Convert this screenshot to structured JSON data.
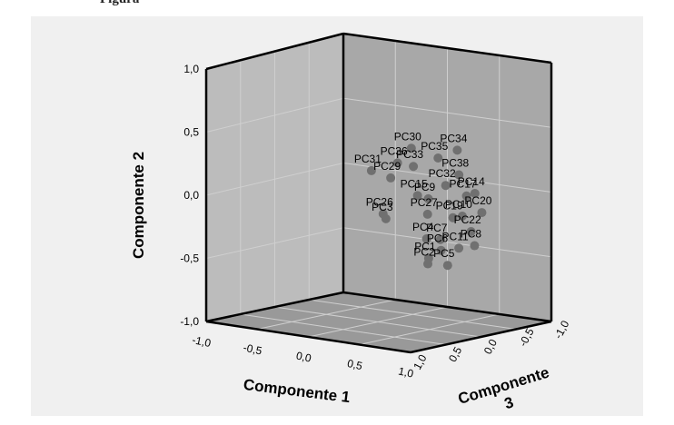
{
  "caption": "Figura",
  "colors": {
    "background": "#ffffff",
    "plot_frame": "#f0f0f0",
    "back_wall": "#a8a8a8",
    "left_wall": "#bcbcbc",
    "floor": "#999999",
    "point": "#707070",
    "grid": "#cfcfcf"
  },
  "chart_data": {
    "type": "scatter",
    "dimensions": 3,
    "xlabel": "Componente 1",
    "ylabel": "Componente 2",
    "zlabel": "Componente 3",
    "xlim": [
      -1.0,
      1.0
    ],
    "ylim": [
      -1.0,
      1.0
    ],
    "zlim": [
      -1.0,
      1.0
    ],
    "x_ticks": [
      "-1,0",
      "-0,5",
      "0,0",
      "0,5",
      "1,0"
    ],
    "y_ticks": [
      "1,0",
      "0,5",
      "0,0",
      "-0,5",
      "-1,0"
    ],
    "z_ticks": [
      "1,0",
      "0,5",
      "0,0",
      "-0,5",
      "-1,0"
    ],
    "grid": true,
    "points": [
      {
        "label": "PC1",
        "x": 0.54,
        "y": -0.43,
        "z": 0.07
      },
      {
        "label": "PC2",
        "x": 0.58,
        "y": -0.46,
        "z": 0.14
      },
      {
        "label": "PC3",
        "x": 0.22,
        "y": -0.14,
        "z": 0.21
      },
      {
        "label": "PC4",
        "x": 0.52,
        "y": -0.28,
        "z": 0.07
      },
      {
        "label": "PC5",
        "x": 0.67,
        "y": -0.48,
        "z": -0.01
      },
      {
        "label": "PC6",
        "x": 0.64,
        "y": -0.36,
        "z": 0.04
      },
      {
        "label": "PC7",
        "x": 0.62,
        "y": -0.28,
        "z": 0.02
      },
      {
        "label": "PC8",
        "x": 0.72,
        "y": -0.36,
        "z": -0.32
      },
      {
        "label": "PC9",
        "x": 0.55,
        "y": 0.04,
        "z": 0.09
      },
      {
        "label": "PC10",
        "x": 0.71,
        "y": -0.11,
        "z": -0.16
      },
      {
        "label": "PC11",
        "x": 0.69,
        "y": -0.36,
        "z": -0.14
      },
      {
        "label": "PC14",
        "x": 0.73,
        "y": 0.05,
        "z": -0.31
      },
      {
        "label": "PC15",
        "x": 0.5,
        "y": 0.07,
        "z": 0.17
      },
      {
        "label": "PC17",
        "x": 0.71,
        "y": 0.04,
        "z": -0.22
      },
      {
        "label": "PC19",
        "x": 0.66,
        "y": -0.12,
        "z": -0.1
      },
      {
        "label": "PC20",
        "x": 0.77,
        "y": -0.1,
        "z": -0.35
      },
      {
        "label": "PC22",
        "x": 0.7,
        "y": -0.25,
        "z": -0.3
      },
      {
        "label": "PC26",
        "x": 0.24,
        "y": -0.09,
        "z": 0.28
      },
      {
        "label": "PC27",
        "x": 0.55,
        "y": -0.08,
        "z": 0.1
      },
      {
        "label": "PC29",
        "x": 0.28,
        "y": 0.19,
        "z": 0.23
      },
      {
        "label": "PC30",
        "x": 0.46,
        "y": 0.44,
        "z": 0.2
      },
      {
        "label": "PC31",
        "x": 0.14,
        "y": 0.24,
        "z": 0.3
      },
      {
        "label": "PC32",
        "x": 0.61,
        "y": 0.13,
        "z": -0.07
      },
      {
        "label": "PC33",
        "x": 0.48,
        "y": 0.3,
        "z": 0.2
      },
      {
        "label": "PC34",
        "x": 0.6,
        "y": 0.38,
        "z": -0.25
      },
      {
        "label": "PC35",
        "x": 0.55,
        "y": 0.34,
        "z": -0.05
      },
      {
        "label": "PC36",
        "x": 0.36,
        "y": 0.32,
        "z": 0.25
      },
      {
        "label": "PC38",
        "x": 0.65,
        "y": 0.2,
        "z": -0.2
      }
    ]
  }
}
